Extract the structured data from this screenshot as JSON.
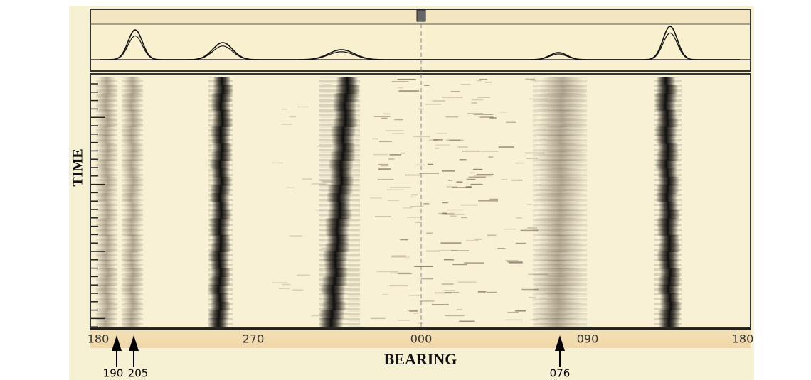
{
  "display": {
    "y_axis_label": "TIME",
    "x_axis_label": "BEARING",
    "bearing_labels": [
      "180",
      "270",
      "000",
      "090",
      "180"
    ],
    "annotations": [
      "190",
      "205",
      "076"
    ]
  }
}
